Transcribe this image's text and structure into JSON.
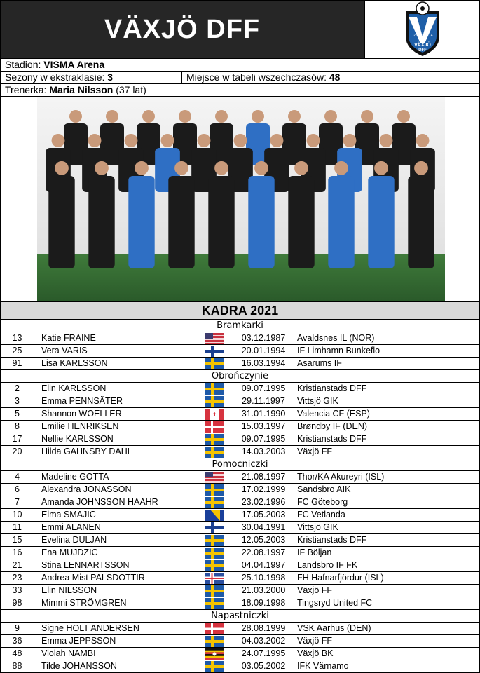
{
  "header": {
    "title": "VÄXJÖ DFF",
    "logo": {
      "icon": "vaxjo-dff-crest",
      "text": "VÄXJÖ DFF",
      "year_left": "20",
      "year_right": "14",
      "colors": {
        "blue": "#1f5fa8",
        "black": "#111111"
      }
    }
  },
  "info": {
    "stadium_label": "Stadion: ",
    "stadium": "VISMA Arena",
    "seasons_label": "Sezony w ekstraklasie: ",
    "seasons": "3",
    "rank_label": "Miejsce w tabeli wszechczasów: ",
    "rank": "48",
    "coach_label": "Trenerka: ",
    "coach": "Maria Nilsson",
    "coach_age": " (37 lat)"
  },
  "photo": {
    "icon": "team-photo"
  },
  "squad": {
    "title": "KADRA 2021",
    "sections": [
      {
        "name": "Bramkarki",
        "players": [
          {
            "num": "13",
            "name": "Katie FRAINE",
            "flag": "us",
            "dob": "03.12.1987",
            "club": "Avaldsnes IL (NOR)"
          },
          {
            "num": "25",
            "name": "Vera VARIS",
            "flag": "fi",
            "dob": "20.01.1994",
            "club": "IF Limhamn Bunkeflo"
          },
          {
            "num": "91",
            "name": "Lisa KARLSSON",
            "flag": "se",
            "dob": "16.03.1994",
            "club": "Asarums IF"
          }
        ]
      },
      {
        "name": "Obrończynie",
        "players": [
          {
            "num": "2",
            "name": "Elin KARLSSON",
            "flag": "se",
            "dob": "09.07.1995",
            "club": "Kristianstads DFF"
          },
          {
            "num": "3",
            "name": "Emma PENNSÄTER",
            "flag": "se",
            "dob": "29.11.1997",
            "club": "Vittsjö GIK"
          },
          {
            "num": "5",
            "name": "Shannon WOELLER",
            "flag": "ca",
            "dob": "31.01.1990",
            "club": "Valencia CF (ESP)"
          },
          {
            "num": "8",
            "name": "Emilie HENRIKSEN",
            "flag": "dk",
            "dob": "15.03.1997",
            "club": "Brøndby IF (DEN)"
          },
          {
            "num": "17",
            "name": "Nellie KARLSSON",
            "flag": "se",
            "dob": "09.07.1995",
            "club": "Kristianstads DFF"
          },
          {
            "num": "20",
            "name": "Hilda GAHNSBY DAHL",
            "flag": "se",
            "dob": "14.03.2003",
            "club": "Växjö FF"
          }
        ]
      },
      {
        "name": "Pomocniczki",
        "players": [
          {
            "num": "4",
            "name": "Madeline GOTTA",
            "flag": "us",
            "dob": "21.08.1997",
            "club": "Thor/KA Akureyri (ISL)"
          },
          {
            "num": "6",
            "name": "Alexandra JONASSON",
            "flag": "se",
            "dob": "17.02.1999",
            "club": "Sandsbro AIK"
          },
          {
            "num": "7",
            "name": "Amanda JOHNSSON HAAHR",
            "flag": "se",
            "dob": "23.02.1996",
            "club": "FC Göteborg"
          },
          {
            "num": "10",
            "name": "Elma SMAJIC",
            "flag": "ba",
            "dob": "17.05.2003",
            "club": "FC Vetlanda"
          },
          {
            "num": "11",
            "name": "Emmi ALANEN",
            "flag": "fi",
            "dob": "30.04.1991",
            "club": "Vittsjö GIK"
          },
          {
            "num": "15",
            "name": "Evelina DULJAN",
            "flag": "se",
            "dob": "12.05.2003",
            "club": "Kristianstads DFF"
          },
          {
            "num": "16",
            "name": "Ena MUJDZIC",
            "flag": "se",
            "dob": "22.08.1997",
            "club": "IF Böljan"
          },
          {
            "num": "21",
            "name": "Stina LENNARTSSON",
            "flag": "se",
            "dob": "04.04.1997",
            "club": "Landsbro IF FK"
          },
          {
            "num": "23",
            "name": "Andrea Mist PALSDOTTIR",
            "flag": "is",
            "dob": "25.10.1998",
            "club": "FH Hafnarfjördur (ISL)"
          },
          {
            "num": "33",
            "name": "Elin NILSSON",
            "flag": "se",
            "dob": "21.03.2000",
            "club": "Växjö FF"
          },
          {
            "num": "98",
            "name": "Mimmi STRÖMGREN",
            "flag": "se",
            "dob": "18.09.1998",
            "club": "Tingsryd United FC"
          }
        ]
      },
      {
        "name": "Napastniczki",
        "players": [
          {
            "num": "9",
            "name": "Signe HOLT ANDERSEN",
            "flag": "dk",
            "dob": "28.08.1999",
            "club": "VSK Aarhus (DEN)"
          },
          {
            "num": "36",
            "name": "Emma JEPPSSON",
            "flag": "se",
            "dob": "04.03.2002",
            "club": "Växjö FF"
          },
          {
            "num": "48",
            "name": "Violah NAMBI",
            "flag": "ug",
            "dob": "24.07.1995",
            "club": "Växjö BK"
          },
          {
            "num": "88",
            "name": "Tilde JOHANSSON",
            "flag": "se",
            "dob": "03.05.2002",
            "club": "IFK Värnamo"
          }
        ]
      }
    ]
  }
}
